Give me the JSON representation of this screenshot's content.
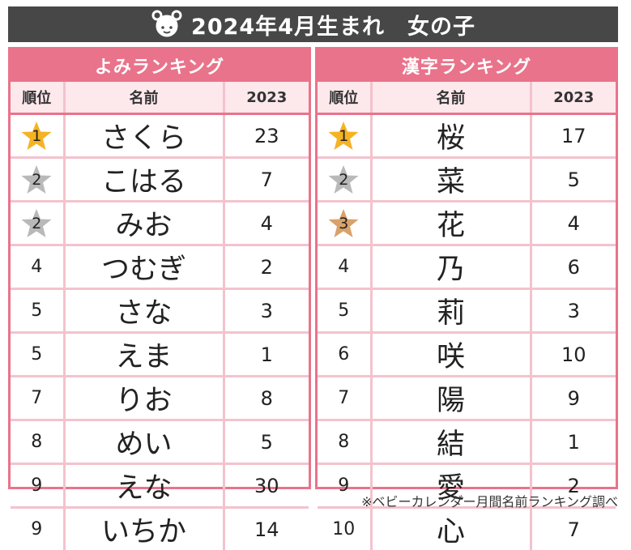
{
  "title": "2024年4月生まれ　女の子",
  "reading_ranking": {
    "header": "よみランキング",
    "columns": [
      "順位",
      "名前",
      "2023"
    ],
    "rows": [
      {
        "rank": "1",
        "name": "さくら",
        "count": "23",
        "medal": "gold"
      },
      {
        "rank": "2",
        "name": "こはる",
        "count": "7",
        "medal": "silver"
      },
      {
        "rank": "2",
        "name": "みお",
        "count": "4",
        "medal": "silver"
      },
      {
        "rank": "4",
        "name": "つむぎ",
        "count": "2",
        "medal": ""
      },
      {
        "rank": "5",
        "name": "さな",
        "count": "3",
        "medal": ""
      },
      {
        "rank": "5",
        "name": "えま",
        "count": "1",
        "medal": ""
      },
      {
        "rank": "7",
        "name": "りお",
        "count": "8",
        "medal": ""
      },
      {
        "rank": "8",
        "name": "めい",
        "count": "5",
        "medal": ""
      },
      {
        "rank": "9",
        "name": "えな",
        "count": "30",
        "medal": ""
      },
      {
        "rank": "9",
        "name": "いちか",
        "count": "14",
        "medal": ""
      }
    ]
  },
  "kanji_ranking": {
    "header": "漢字ランキング",
    "columns": [
      "順位",
      "名前",
      "2023"
    ],
    "rows": [
      {
        "rank": "1",
        "name": "桜",
        "count": "17",
        "medal": "gold"
      },
      {
        "rank": "2",
        "name": "菜",
        "count": "5",
        "medal": "silver"
      },
      {
        "rank": "3",
        "name": "花",
        "count": "4",
        "medal": "bronze"
      },
      {
        "rank": "4",
        "name": "乃",
        "count": "6",
        "medal": ""
      },
      {
        "rank": "5",
        "name": "莉",
        "count": "3",
        "medal": ""
      },
      {
        "rank": "6",
        "name": "咲",
        "count": "10",
        "medal": ""
      },
      {
        "rank": "7",
        "name": "陽",
        "count": "9",
        "medal": ""
      },
      {
        "rank": "8",
        "name": "結",
        "count": "1",
        "medal": ""
      },
      {
        "rank": "9",
        "name": "愛",
        "count": "2",
        "medal": ""
      },
      {
        "rank": "10",
        "name": "心",
        "count": "7",
        "medal": ""
      }
    ]
  },
  "medal_colors": {
    "gold": "#f5b324",
    "silver": "#b9b9b9",
    "bronze": "#d9a26a"
  },
  "footnote": "※ベビーカレンダー月間名前ランキング調べ"
}
